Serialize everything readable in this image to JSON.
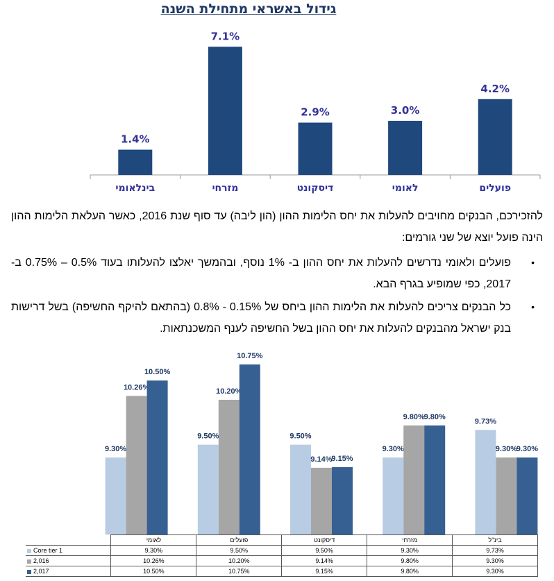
{
  "chart_data": [
    {
      "type": "bar",
      "title": "גידול באשראי מתחילת השנה",
      "categories": [
        "פועלים",
        "לאומי",
        "דיסקונט",
        "מזרחי",
        "בינלאומי"
      ],
      "values": [
        4.2,
        3.0,
        2.9,
        7.1,
        1.4
      ],
      "value_labels": [
        "4.2%",
        "3.0%",
        "2.9%",
        "7.1%",
        "1.4%"
      ],
      "ylim": [
        0,
        8
      ],
      "grid": false,
      "bar_color": "#1f497d",
      "direction": "right-to-left"
    },
    {
      "type": "bar",
      "categories": [
        "לאומי",
        "פועלים",
        "דיסקונט",
        "מזרחי",
        "בינ\"ל"
      ],
      "series": [
        {
          "name": "Core tier 1",
          "values": [
            9.3,
            9.5,
            9.5,
            9.3,
            9.73
          ],
          "labels": [
            "9.30%",
            "9.50%",
            "9.50%",
            "9.30%",
            "9.73%"
          ],
          "color": "#b8cce4"
        },
        {
          "name": "2,016",
          "values": [
            10.26,
            10.2,
            9.14,
            9.8,
            9.3
          ],
          "labels": [
            "10.26%",
            "10.20%",
            "9.14%",
            "9.80%",
            "9.30%"
          ],
          "color": "#a6a6a6"
        },
        {
          "name": "2,017",
          "values": [
            10.5,
            10.75,
            9.15,
            9.8,
            9.3
          ],
          "labels": [
            "10.50%",
            "10.75%",
            "9.15%",
            "9.80%",
            "9.30%"
          ],
          "color": "#376092"
        }
      ],
      "ylim": [
        8.1,
        11.0
      ],
      "grid": false,
      "legend": "data-table"
    }
  ],
  "text": {
    "intro": "להזכירכם, הבנקים מחויבים להעלות את יחס הלימות ההון (הון ליבה) עד סוף שנת 2016, כאשר העלאת הלימות ההון הינה פועל יוצא של שני גורמים:",
    "bullets": [
      "פועלים ולאומי נדרשים להעלות את יחס ההון ב- 1% נוסף, ובהמשך יאלצו להעלותו בעוד 0.5% – 0.75% ב- 2017, כפי שמופיע בגרף הבא.",
      "כל הבנקים צריכים להעלות את הלימות ההון ביחס של 0.15% - 0.8% (בהתאם להיקף החשיפה) בשל דרישות בנק ישראל מהבנקים להעלות את יחס ההון בשל החשיפה לענף המשכנתאות."
    ],
    "bullet_symbol": "•"
  }
}
